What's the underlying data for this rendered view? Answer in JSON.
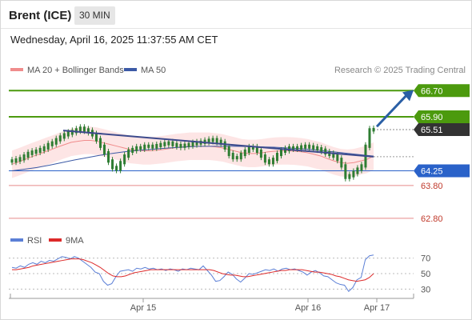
{
  "header": {
    "instrument": "Brent (ICE)",
    "timeframe": "30 MIN",
    "datetime": "Wednesday, April 16, 2025 11:37:55 AM CET"
  },
  "legend": {
    "ma20_label": "MA 20 + Bollinger Bands",
    "ma50_label": "MA 50",
    "credit": "Research © 2025 Trading Central"
  },
  "colors": {
    "candle": "#2e7d32",
    "ma20": "#f08c8c",
    "ma50": "#3c5aa6",
    "bollinger_fill": "#fde0e0",
    "resistance": "#4c9a0e",
    "support": "#2a62c9",
    "target_lower": "#e88a8a",
    "current": "#333333",
    "trendline": "#3c4a8c",
    "arrow": "#2a5fa5",
    "rsi": "#5b7fd6",
    "rsi_ma": "#dd2a2a"
  },
  "levels": [
    {
      "label": "66.70",
      "type": "resistance"
    },
    {
      "label": "65.90",
      "type": "resistance"
    },
    {
      "label": "65.51",
      "type": "current"
    },
    {
      "label": "64.25",
      "type": "support"
    },
    {
      "label": "63.80",
      "type": "target"
    },
    {
      "label": "62.80",
      "type": "target"
    }
  ],
  "x_axis": {
    "ticks": [
      "Apr 15",
      "Apr 16",
      "Apr 17"
    ]
  },
  "rsi_panel": {
    "rsi_label": "RSI",
    "ma_label": "9MA",
    "ticks": [
      "70",
      "50",
      "30"
    ]
  },
  "chart_data": {
    "type": "line",
    "title": "Brent (ICE)",
    "xlabel": "",
    "ylabel": "",
    "ylim": [
      62.6,
      67.0
    ],
    "price_close": [
      64.55,
      64.58,
      64.62,
      64.7,
      64.78,
      64.82,
      64.85,
      64.9,
      64.95,
      65.05,
      65.1,
      65.2,
      65.28,
      65.35,
      65.4,
      65.45,
      65.5,
      65.55,
      65.5,
      65.45,
      65.35,
      65.2,
      65.0,
      64.8,
      64.55,
      64.35,
      64.3,
      64.5,
      64.7,
      64.85,
      64.9,
      64.95,
      64.95,
      65.0,
      65.0,
      64.98,
      65.02,
      65.05,
      65.08,
      65.1,
      65.05,
      65.02,
      65.0,
      65.03,
      65.05,
      65.08,
      65.1,
      65.12,
      65.15,
      65.18,
      65.2,
      65.15,
      65.1,
      64.95,
      64.75,
      64.65,
      64.65,
      64.75,
      64.85,
      64.95,
      64.95,
      64.85,
      64.7,
      64.55,
      64.5,
      64.6,
      64.75,
      64.85,
      64.9,
      64.95,
      64.95,
      64.95,
      64.98,
      65.0,
      64.98,
      64.95,
      64.92,
      64.88,
      64.8,
      64.75,
      64.7,
      64.6,
      64.4,
      64.05,
      64.1,
      64.2,
      64.3,
      64.4,
      65.0,
      65.5,
      65.51
    ],
    "ma20": [
      64.45,
      64.52,
      64.6,
      64.68,
      64.75,
      64.83,
      64.9,
      64.98,
      65.05,
      65.12,
      65.15,
      65.18,
      65.18,
      65.15,
      65.1,
      65.05,
      65.0,
      64.95,
      64.9,
      64.88,
      64.86,
      64.86,
      64.88,
      64.9,
      64.93,
      64.96,
      64.98,
      65.0,
      65.0,
      65.0,
      65.0,
      64.98,
      64.95,
      64.9,
      64.85,
      64.8,
      64.78,
      64.78,
      64.8,
      64.83,
      64.85,
      64.86,
      64.86,
      64.85,
      64.83,
      64.8,
      64.75,
      64.7,
      64.62,
      64.55,
      64.5,
      64.48,
      64.5,
      64.55,
      64.6,
      64.7
    ],
    "ma50": [
      64.25,
      64.3,
      64.35,
      64.42,
      64.5,
      64.58,
      64.65,
      64.72,
      64.78,
      64.83,
      64.87,
      64.9,
      64.93,
      64.96,
      64.98,
      65.0,
      65.0,
      65.0,
      65.0,
      64.99,
      64.98,
      64.97,
      64.95,
      64.93,
      64.9,
      64.86,
      64.82,
      64.78,
      64.74,
      64.7
    ],
    "rsi": [
      58,
      57,
      60,
      58,
      62,
      64,
      62,
      66,
      64,
      67,
      66,
      69,
      72,
      71,
      69,
      72,
      70,
      66,
      62,
      58,
      52,
      50,
      40,
      35,
      37,
      46,
      53,
      54,
      55,
      53,
      57,
      56,
      58,
      56,
      57,
      55,
      56,
      54,
      56,
      55,
      53,
      56,
      55,
      57,
      56,
      55,
      60,
      54,
      48,
      40,
      41,
      46,
      52,
      49,
      43,
      39,
      44,
      50,
      49,
      51,
      53,
      55,
      54,
      56,
      53,
      56,
      57,
      55,
      56,
      54,
      52,
      48,
      52,
      54,
      51,
      47,
      46,
      42,
      38,
      36,
      35,
      27,
      32,
      42,
      45,
      68,
      73,
      74
    ],
    "rsi_ma": [
      55,
      55,
      56,
      57,
      58,
      60,
      61,
      62,
      63,
      64,
      65,
      66,
      67,
      68,
      69,
      69,
      69,
      68,
      66,
      64,
      61,
      58,
      54,
      50,
      47,
      46,
      46,
      47,
      49,
      51,
      52,
      53,
      54,
      55,
      55,
      55,
      55,
      55,
      55,
      55,
      55,
      55,
      55,
      55,
      55,
      55,
      55,
      55,
      54,
      52,
      50,
      49,
      48,
      48,
      47,
      46,
      46,
      47,
      48,
      49,
      50,
      51,
      52,
      53,
      54,
      54,
      55,
      55,
      55,
      55,
      54,
      53,
      52,
      52,
      51,
      50,
      49,
      47,
      46,
      44,
      42,
      41,
      40,
      41,
      42,
      45,
      50
    ]
  }
}
